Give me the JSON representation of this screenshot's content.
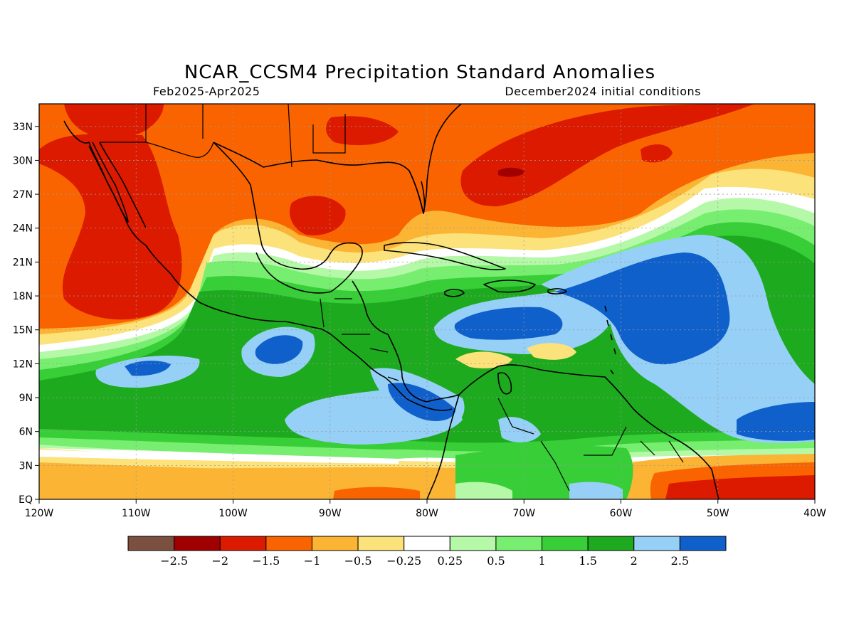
{
  "title": "NCAR_CCSM4 Precipitation Standard Anomalies",
  "period": "Feb2025-Apr2025",
  "init": "December2024 initial conditions",
  "map": {
    "lon_range": [
      -120,
      -40
    ],
    "lat_range": [
      0,
      35
    ],
    "lon_ticks": [
      {
        "value": -120,
        "label": "120W"
      },
      {
        "value": -110,
        "label": "110W"
      },
      {
        "value": -100,
        "label": "100W"
      },
      {
        "value": -90,
        "label": "90W"
      },
      {
        "value": -80,
        "label": "80W"
      },
      {
        "value": -70,
        "label": "70W"
      },
      {
        "value": -60,
        "label": "60W"
      },
      {
        "value": -50,
        "label": "50W"
      },
      {
        "value": -40,
        "label": "40W"
      }
    ],
    "lat_ticks": [
      {
        "value": 0,
        "label": "EQ"
      },
      {
        "value": 3,
        "label": "3N"
      },
      {
        "value": 6,
        "label": "6N"
      },
      {
        "value": 9,
        "label": "9N"
      },
      {
        "value": 12,
        "label": "12N"
      },
      {
        "value": 15,
        "label": "15N"
      },
      {
        "value": 18,
        "label": "18N"
      },
      {
        "value": 21,
        "label": "21N"
      },
      {
        "value": 24,
        "label": "24N"
      },
      {
        "value": 27,
        "label": "27N"
      },
      {
        "value": 30,
        "label": "30N"
      },
      {
        "value": 33,
        "label": "33N"
      }
    ]
  },
  "colorbar": {
    "colors": [
      "#7b5040",
      "#a00000",
      "#dc1a00",
      "#fa6400",
      "#fcb434",
      "#fce27a",
      "#ffffff",
      "#b4f8a8",
      "#78ee70",
      "#38ce38",
      "#1eaa1e",
      "#96d0f6",
      "#1060cc"
    ],
    "labels": [
      "-2.5",
      "-2",
      "-1.5",
      "-1",
      "-0.5",
      "-0.25",
      "0.25",
      "0.5",
      "1",
      "1.5",
      "2",
      "2.5"
    ]
  }
}
